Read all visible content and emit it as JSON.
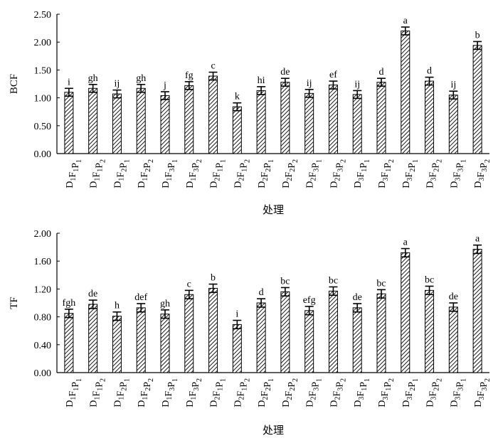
{
  "chart_data": [
    {
      "type": "bar",
      "ylabel": "BCF",
      "xlabel": "处理",
      "ylim": [
        0,
        2.5
      ],
      "yticks": [
        "0.00",
        "0.50",
        "1.00",
        "1.50",
        "2.00",
        "2.50"
      ],
      "categories": [
        {
          "parts": [
            [
              "D",
              "1"
            ],
            [
              "F",
              "1"
            ],
            [
              "P",
              "1"
            ]
          ]
        },
        {
          "parts": [
            [
              "D",
              "1"
            ],
            [
              "F",
              "1"
            ],
            [
              "P",
              "2"
            ]
          ]
        },
        {
          "parts": [
            [
              "D",
              "1"
            ],
            [
              "F",
              "2"
            ],
            [
              "P",
              "1"
            ]
          ]
        },
        {
          "parts": [
            [
              "D",
              "1"
            ],
            [
              "F",
              "2"
            ],
            [
              "P",
              "2"
            ]
          ]
        },
        {
          "parts": [
            [
              "D",
              "1"
            ],
            [
              "F",
              "3"
            ],
            [
              "P",
              "1"
            ]
          ]
        },
        {
          "parts": [
            [
              "D",
              "1"
            ],
            [
              "F",
              "3"
            ],
            [
              "P",
              "2"
            ]
          ]
        },
        {
          "parts": [
            [
              "D",
              "2"
            ],
            [
              "F",
              "1"
            ],
            [
              "P",
              "1"
            ]
          ]
        },
        {
          "parts": [
            [
              "D",
              "2"
            ],
            [
              "F",
              "1"
            ],
            [
              "P",
              "2"
            ]
          ]
        },
        {
          "parts": [
            [
              "D",
              "2"
            ],
            [
              "F",
              "2"
            ],
            [
              "P",
              "1"
            ]
          ]
        },
        {
          "parts": [
            [
              "D",
              "2"
            ],
            [
              "F",
              "2"
            ],
            [
              "P",
              "2"
            ]
          ]
        },
        {
          "parts": [
            [
              "D",
              "2"
            ],
            [
              "F",
              "3"
            ],
            [
              "P",
              "1"
            ]
          ]
        },
        {
          "parts": [
            [
              "D",
              "2"
            ],
            [
              "F",
              "3"
            ],
            [
              "P",
              "2"
            ]
          ]
        },
        {
          "parts": [
            [
              "D",
              "3"
            ],
            [
              "F",
              "1"
            ],
            [
              "P",
              "1"
            ]
          ]
        },
        {
          "parts": [
            [
              "D",
              "3"
            ],
            [
              "F",
              "1"
            ],
            [
              "P",
              "2"
            ]
          ]
        },
        {
          "parts": [
            [
              "D",
              "3"
            ],
            [
              "F",
              "2"
            ],
            [
              "P",
              "1"
            ]
          ]
        },
        {
          "parts": [
            [
              "D",
              "3"
            ],
            [
              "F",
              "2"
            ],
            [
              "P",
              "2"
            ]
          ]
        },
        {
          "parts": [
            [
              "D",
              "3"
            ],
            [
              "F",
              "3"
            ],
            [
              "P",
              "1"
            ]
          ]
        },
        {
          "parts": [
            [
              "D",
              "3"
            ],
            [
              "F",
              "3"
            ],
            [
              "P",
              "2"
            ]
          ]
        }
      ],
      "values": [
        1.1,
        1.17,
        1.07,
        1.17,
        1.04,
        1.22,
        1.39,
        0.84,
        1.13,
        1.28,
        1.08,
        1.23,
        1.06,
        1.28,
        2.2,
        1.3,
        1.05,
        1.94
      ],
      "errors": [
        0.07,
        0.07,
        0.07,
        0.07,
        0.07,
        0.07,
        0.07,
        0.07,
        0.07,
        0.07,
        0.07,
        0.07,
        0.07,
        0.07,
        0.07,
        0.07,
        0.07,
        0.07
      ],
      "letters": [
        "i",
        "gh",
        "ij",
        "gh",
        "j",
        "fg",
        "c",
        "k",
        "hi",
        "de",
        "ij",
        "ef",
        "ij",
        "d",
        "a",
        "d",
        "ij",
        "b"
      ],
      "grid": false
    },
    {
      "type": "bar",
      "ylabel": "TF",
      "xlabel": "处理",
      "ylim": [
        0,
        2.0
      ],
      "yticks": [
        "0.00",
        "0.40",
        "0.80",
        "1.20",
        "1.60",
        "2.00"
      ],
      "categories": [
        {
          "parts": [
            [
              "D",
              "1"
            ],
            [
              "F",
              "1"
            ],
            [
              "P",
              "1"
            ]
          ]
        },
        {
          "parts": [
            [
              "D",
              "1"
            ],
            [
              "F",
              "1"
            ],
            [
              "P",
              "2"
            ]
          ]
        },
        {
          "parts": [
            [
              "D",
              "1"
            ],
            [
              "F",
              "2"
            ],
            [
              "P",
              "1"
            ]
          ]
        },
        {
          "parts": [
            [
              "D",
              "1"
            ],
            [
              "F",
              "2"
            ],
            [
              "P",
              "2"
            ]
          ]
        },
        {
          "parts": [
            [
              "D",
              "1"
            ],
            [
              "F",
              "3"
            ],
            [
              "P",
              "1"
            ]
          ]
        },
        {
          "parts": [
            [
              "D",
              "1"
            ],
            [
              "F",
              "3"
            ],
            [
              "P",
              "2"
            ]
          ]
        },
        {
          "parts": [
            [
              "D",
              "2"
            ],
            [
              "F",
              "1"
            ],
            [
              "P",
              "1"
            ]
          ]
        },
        {
          "parts": [
            [
              "D",
              "2"
            ],
            [
              "F",
              "1"
            ],
            [
              "P",
              "2"
            ]
          ]
        },
        {
          "parts": [
            [
              "D",
              "2"
            ],
            [
              "F",
              "2"
            ],
            [
              "P",
              "1"
            ]
          ]
        },
        {
          "parts": [
            [
              "D",
              "2"
            ],
            [
              "F",
              "2"
            ],
            [
              "P",
              "2"
            ]
          ]
        },
        {
          "parts": [
            [
              "D",
              "2"
            ],
            [
              "F",
              "3"
            ],
            [
              "P",
              "1"
            ]
          ]
        },
        {
          "parts": [
            [
              "D",
              "2"
            ],
            [
              "F",
              "3"
            ],
            [
              "P",
              "2"
            ]
          ]
        },
        {
          "parts": [
            [
              "D",
              "3"
            ],
            [
              "F",
              "1"
            ],
            [
              "P",
              "1"
            ]
          ]
        },
        {
          "parts": [
            [
              "D",
              "3"
            ],
            [
              "F",
              "1"
            ],
            [
              "P",
              "2"
            ]
          ]
        },
        {
          "parts": [
            [
              "D",
              "3"
            ],
            [
              "F",
              "2"
            ],
            [
              "P",
              "1"
            ]
          ]
        },
        {
          "parts": [
            [
              "D",
              "3"
            ],
            [
              "F",
              "2"
            ],
            [
              "P",
              "2"
            ]
          ]
        },
        {
          "parts": [
            [
              "D",
              "3"
            ],
            [
              "F",
              "3"
            ],
            [
              "P",
              "1"
            ]
          ]
        },
        {
          "parts": [
            [
              "D",
              "3"
            ],
            [
              "F",
              "3"
            ],
            [
              "P",
              "2"
            ]
          ]
        }
      ],
      "values": [
        0.85,
        0.98,
        0.81,
        0.93,
        0.84,
        1.12,
        1.21,
        0.69,
        1.0,
        1.16,
        0.89,
        1.17,
        0.93,
        1.13,
        1.72,
        1.18,
        0.94,
        1.77
      ],
      "errors": [
        0.06,
        0.06,
        0.06,
        0.06,
        0.06,
        0.06,
        0.06,
        0.06,
        0.06,
        0.06,
        0.06,
        0.06,
        0.06,
        0.06,
        0.06,
        0.06,
        0.06,
        0.06
      ],
      "letters": [
        "fgh",
        "de",
        "h",
        "def",
        "gh",
        "c",
        "b",
        "i",
        "d",
        "bc",
        "efg",
        "bc",
        "de",
        "bc",
        "a",
        "bc",
        "de",
        "a"
      ],
      "grid": false
    }
  ]
}
